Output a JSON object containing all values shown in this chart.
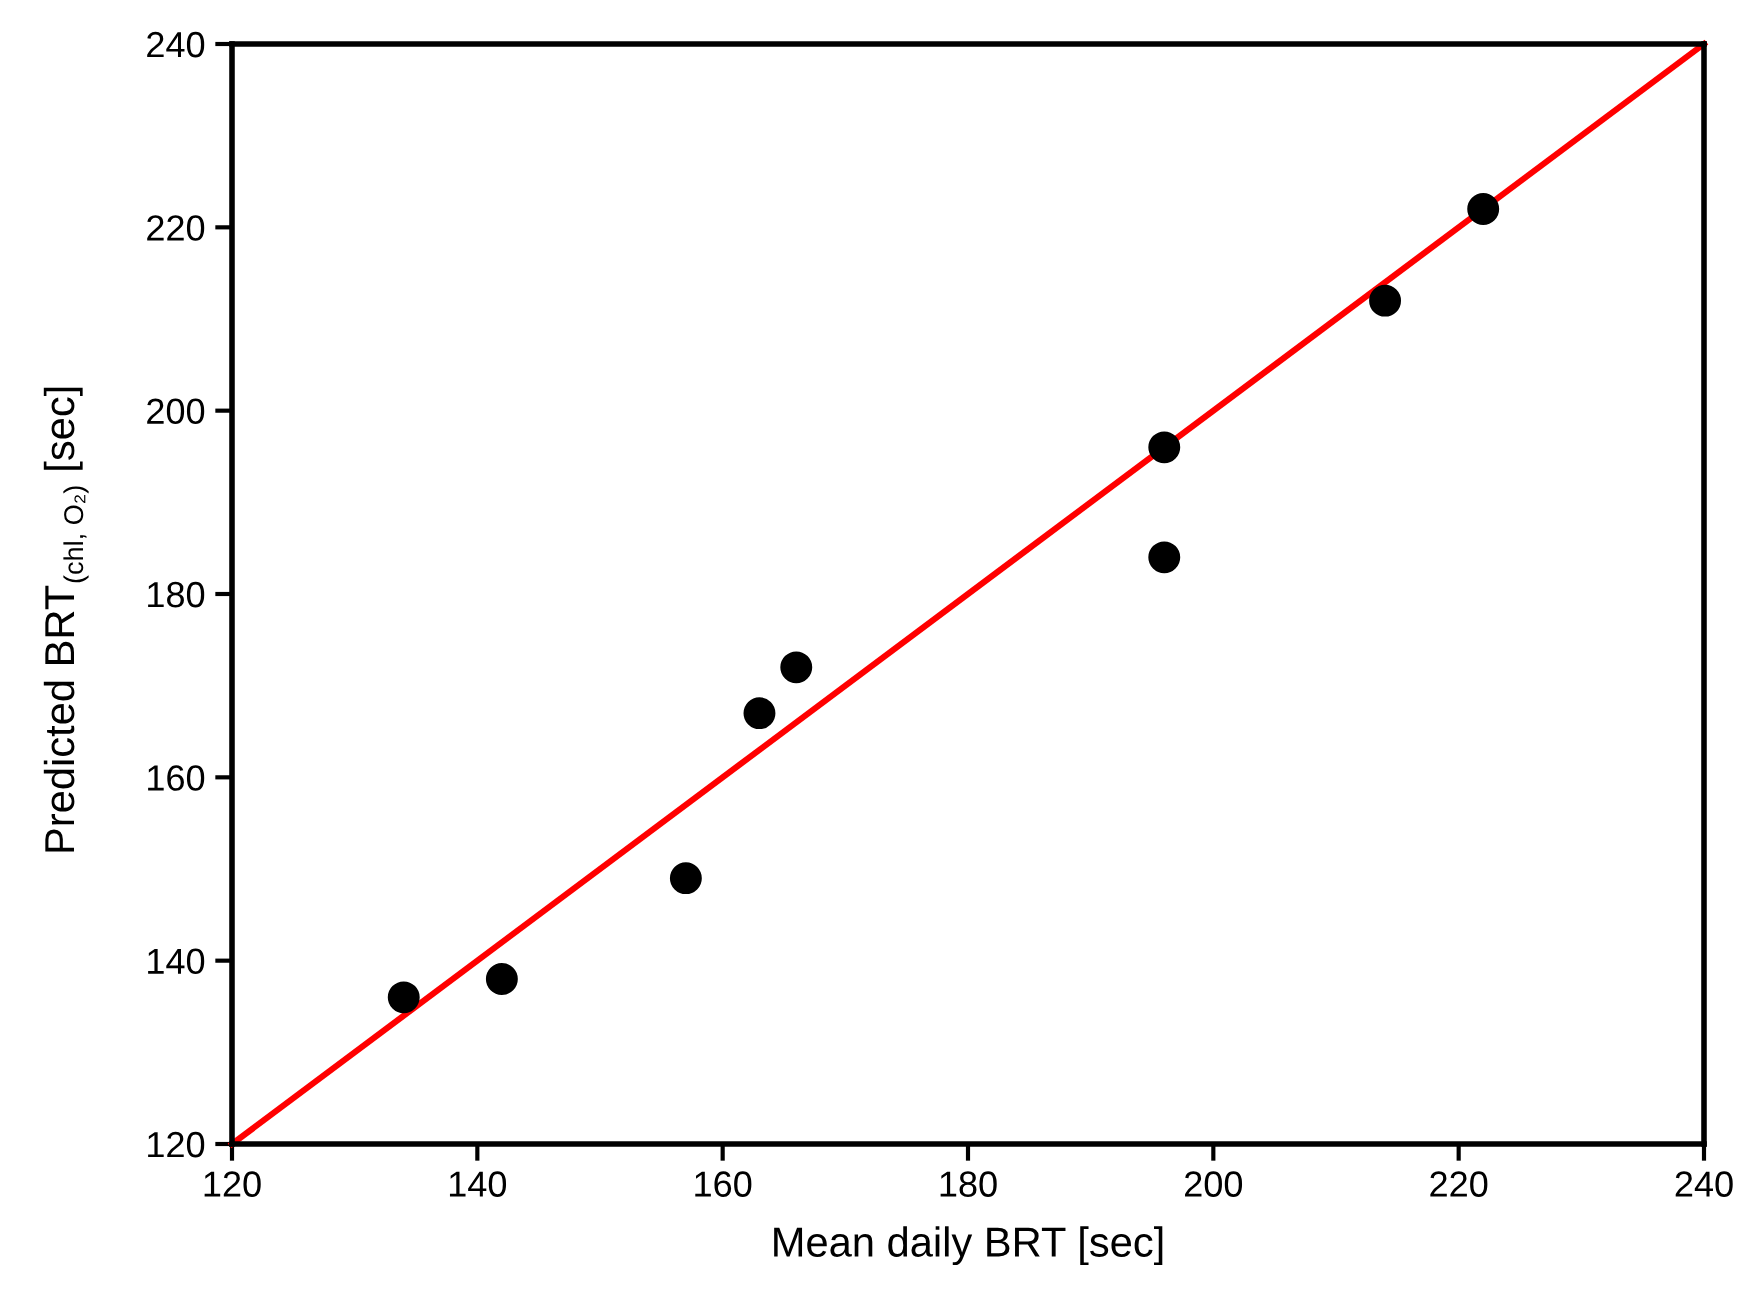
{
  "chart_data": {
    "type": "scatter",
    "xlabel": "Mean daily BRT [sec]",
    "ylabel": "Predicted BRT$_{(chl, O₂)}$ [sec]",
    "xlim": [
      120,
      240
    ],
    "ylim": [
      120,
      240
    ],
    "xticks": [
      120,
      140,
      160,
      180,
      200,
      220,
      240
    ],
    "yticks": [
      120,
      140,
      160,
      180,
      200,
      220,
      240
    ],
    "grid": false,
    "legend": false,
    "series": [
      {
        "marker": "circle",
        "color": "#000000",
        "x": [
          134,
          142,
          157,
          163,
          166,
          196,
          196,
          214,
          222
        ],
        "values": [
          136,
          138,
          149,
          167,
          172,
          196,
          184,
          212,
          222
        ]
      },
      {
        "type": "line",
        "color": "#ff0000",
        "x": [
          120,
          240
        ],
        "values": [
          120,
          240
        ],
        "line_style": "solid",
        "marker": "none"
      }
    ]
  }
}
